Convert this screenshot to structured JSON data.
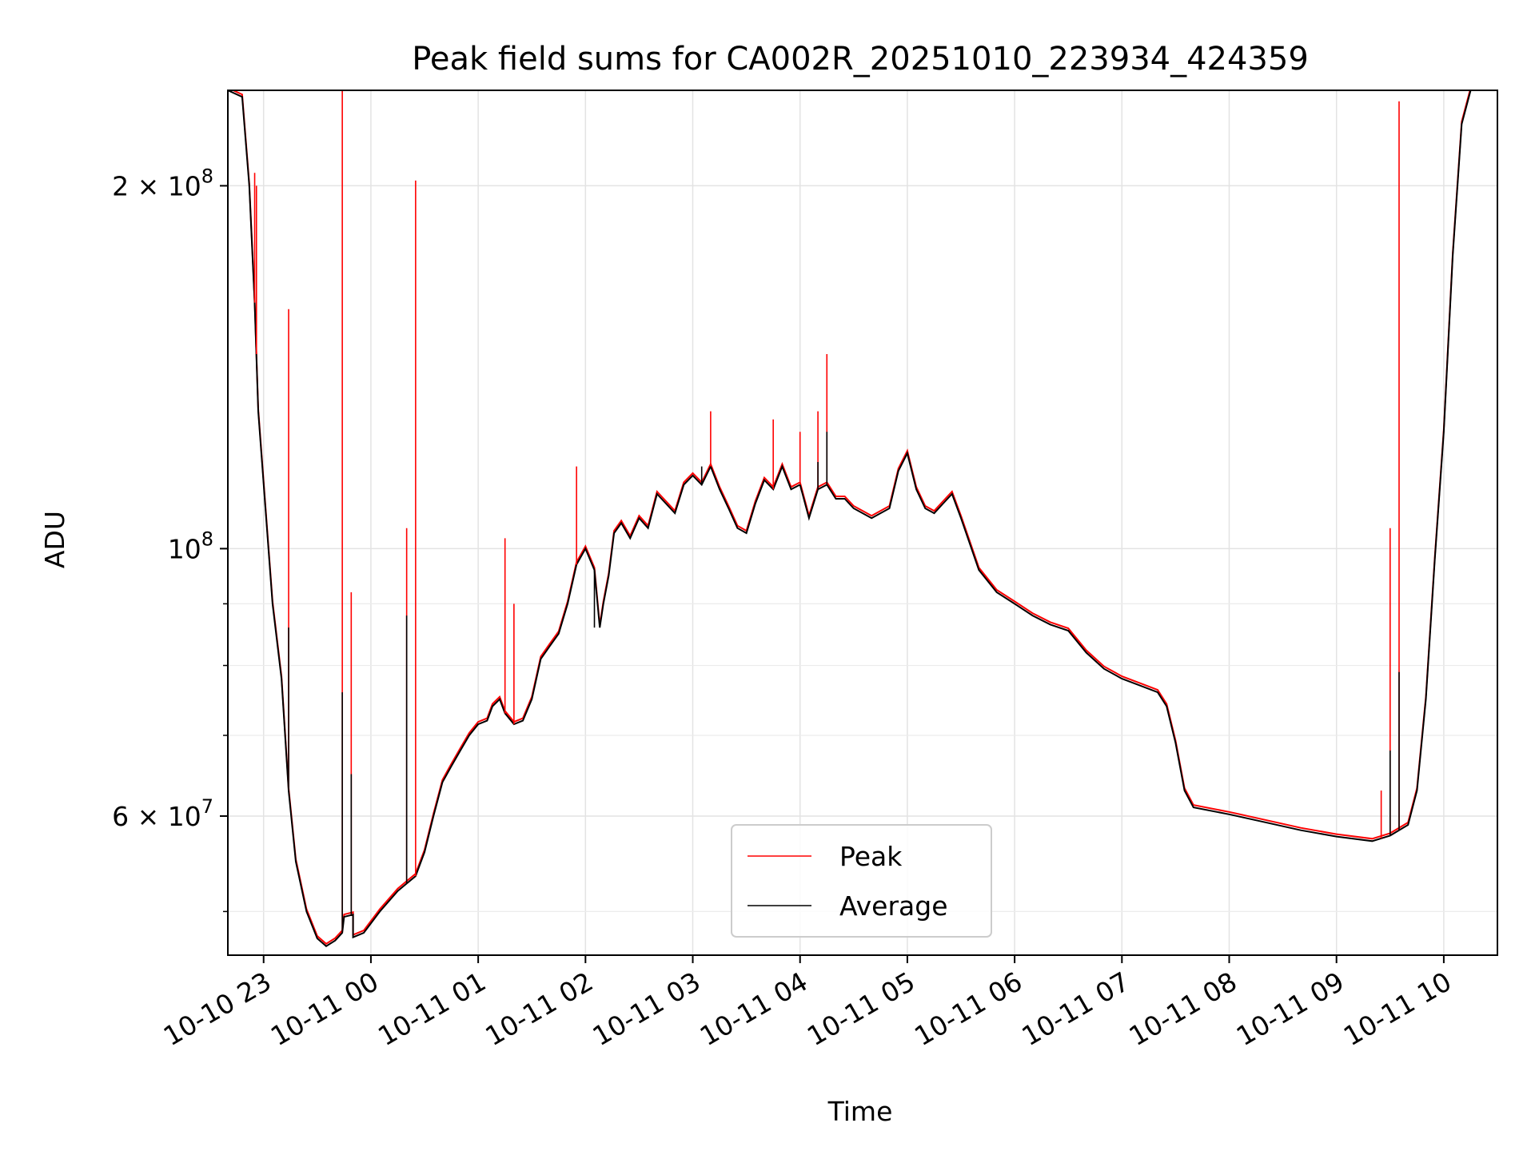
{
  "chart_data": {
    "type": "line",
    "title": "Peak field sums for CA002R_20251010_223934_424359",
    "xlabel": "Time",
    "ylabel": "ADU",
    "y_scale": "log",
    "ylim": [
      46000000,
      240000000
    ],
    "xlim": [
      "2025-10-10 22:40",
      "2025-10-11 10:30"
    ],
    "grid": true,
    "legend_position": "lower-center",
    "x_ticks": [
      {
        "value": "2025-10-10 23:00",
        "label": "10-10 23"
      },
      {
        "value": "2025-10-11 00:00",
        "label": "10-11 00"
      },
      {
        "value": "2025-10-11 01:00",
        "label": "10-11 01"
      },
      {
        "value": "2025-10-11 02:00",
        "label": "10-11 02"
      },
      {
        "value": "2025-10-11 03:00",
        "label": "10-11 03"
      },
      {
        "value": "2025-10-11 04:00",
        "label": "10-11 04"
      },
      {
        "value": "2025-10-11 05:00",
        "label": "10-11 05"
      },
      {
        "value": "2025-10-11 06:00",
        "label": "10-11 06"
      },
      {
        "value": "2025-10-11 07:00",
        "label": "10-11 07"
      },
      {
        "value": "2025-10-11 08:00",
        "label": "10-11 08"
      },
      {
        "value": "2025-10-11 09:00",
        "label": "10-11 09"
      },
      {
        "value": "2025-10-11 10:00",
        "label": "10-11 10"
      }
    ],
    "y_ticks": [
      {
        "value": 60000000,
        "mantissa": "6",
        "exponent": "7"
      },
      {
        "value": 100000000,
        "mantissa": "",
        "exponent": "8"
      },
      {
        "value": 200000000,
        "mantissa": "2",
        "exponent": "8"
      }
    ],
    "y_minor_ticks": [
      50000000,
      70000000,
      80000000,
      90000000
    ],
    "series": [
      {
        "name": "Average",
        "color": "#000000",
        "points": [
          [
            "2025-10-10 22:40",
            240000000
          ],
          [
            "2025-10-10 22:48",
            237000000
          ],
          [
            "2025-10-10 22:52",
            200000000
          ],
          [
            "2025-10-10 22:55",
            160000000
          ],
          [
            "2025-10-10 22:57",
            130000000
          ],
          [
            "2025-10-10 23:05",
            90000000
          ],
          [
            "2025-10-10 23:10",
            78000000
          ],
          [
            "2025-10-10 23:14",
            63000000
          ],
          [
            "2025-10-10 23:18",
            55000000
          ],
          [
            "2025-10-10 23:24",
            50000000
          ],
          [
            "2025-10-10 23:30",
            47500000
          ],
          [
            "2025-10-10 23:35",
            46800000
          ],
          [
            "2025-10-10 23:40",
            47300000
          ],
          [
            "2025-10-10 23:44",
            48000000
          ],
          [
            "2025-10-10 23:45",
            49500000
          ],
          [
            "2025-10-10 23:50",
            49700000
          ],
          [
            "2025-10-10 23:50",
            47600000
          ],
          [
            "2025-10-10 23:56",
            48000000
          ],
          [
            "2025-10-11 00:05",
            50000000
          ],
          [
            "2025-10-11 00:15",
            52000000
          ],
          [
            "2025-10-11 00:25",
            53500000
          ],
          [
            "2025-10-11 00:30",
            56000000
          ],
          [
            "2025-10-11 00:35",
            60000000
          ],
          [
            "2025-10-11 00:40",
            64000000
          ],
          [
            "2025-10-11 00:45",
            66000000
          ],
          [
            "2025-10-11 00:50",
            68000000
          ],
          [
            "2025-10-11 00:55",
            70000000
          ],
          [
            "2025-10-11 01:00",
            71500000
          ],
          [
            "2025-10-11 01:05",
            72000000
          ],
          [
            "2025-10-11 01:08",
            74000000
          ],
          [
            "2025-10-11 01:12",
            75000000
          ],
          [
            "2025-10-11 01:15",
            73000000
          ],
          [
            "2025-10-11 01:20",
            71500000
          ],
          [
            "2025-10-11 01:25",
            72000000
          ],
          [
            "2025-10-11 01:30",
            75000000
          ],
          [
            "2025-10-11 01:35",
            81000000
          ],
          [
            "2025-10-11 01:40",
            83000000
          ],
          [
            "2025-10-11 01:45",
            85000000
          ],
          [
            "2025-10-11 01:50",
            90000000
          ],
          [
            "2025-10-11 01:55",
            97000000
          ],
          [
            "2025-10-11 02:00",
            100000000
          ],
          [
            "2025-10-11 02:05",
            96000000
          ],
          [
            "2025-10-11 02:08",
            86000000
          ],
          [
            "2025-10-11 02:10",
            90000000
          ],
          [
            "2025-10-11 02:13",
            95000000
          ],
          [
            "2025-10-11 02:16",
            103000000
          ],
          [
            "2025-10-11 02:20",
            105000000
          ],
          [
            "2025-10-11 02:25",
            102000000
          ],
          [
            "2025-10-11 02:30",
            106000000
          ],
          [
            "2025-10-11 02:35",
            104000000
          ],
          [
            "2025-10-11 02:40",
            111000000
          ],
          [
            "2025-10-11 02:45",
            109000000
          ],
          [
            "2025-10-11 02:50",
            107000000
          ],
          [
            "2025-10-11 02:55",
            113000000
          ],
          [
            "2025-10-11 03:00",
            115000000
          ],
          [
            "2025-10-11 03:05",
            113000000
          ],
          [
            "2025-10-11 03:10",
            117000000
          ],
          [
            "2025-10-11 03:15",
            112000000
          ],
          [
            "2025-10-11 03:20",
            108000000
          ],
          [
            "2025-10-11 03:25",
            104000000
          ],
          [
            "2025-10-11 03:30",
            103000000
          ],
          [
            "2025-10-11 03:35",
            109000000
          ],
          [
            "2025-10-11 03:40",
            114000000
          ],
          [
            "2025-10-11 03:45",
            112000000
          ],
          [
            "2025-10-11 03:50",
            117000000
          ],
          [
            "2025-10-11 03:55",
            112000000
          ],
          [
            "2025-10-11 04:00",
            113000000
          ],
          [
            "2025-10-11 04:05",
            106000000
          ],
          [
            "2025-10-11 04:10",
            112000000
          ],
          [
            "2025-10-11 04:15",
            113000000
          ],
          [
            "2025-10-11 04:20",
            110000000
          ],
          [
            "2025-10-11 04:25",
            110000000
          ],
          [
            "2025-10-11 04:30",
            108000000
          ],
          [
            "2025-10-11 04:40",
            106000000
          ],
          [
            "2025-10-11 04:50",
            108000000
          ],
          [
            "2025-10-11 04:55",
            116000000
          ],
          [
            "2025-10-11 05:00",
            120000000
          ],
          [
            "2025-10-11 05:05",
            112000000
          ],
          [
            "2025-10-11 05:10",
            108000000
          ],
          [
            "2025-10-11 05:15",
            107000000
          ],
          [
            "2025-10-11 05:20",
            109000000
          ],
          [
            "2025-10-11 05:25",
            111000000
          ],
          [
            "2025-10-11 05:30",
            106000000
          ],
          [
            "2025-10-11 05:40",
            96000000
          ],
          [
            "2025-10-11 05:50",
            92000000
          ],
          [
            "2025-10-11 06:00",
            90000000
          ],
          [
            "2025-10-11 06:10",
            88000000
          ],
          [
            "2025-10-11 06:20",
            86500000
          ],
          [
            "2025-10-11 06:30",
            85500000
          ],
          [
            "2025-10-11 06:40",
            82000000
          ],
          [
            "2025-10-11 06:50",
            79500000
          ],
          [
            "2025-10-11 07:00",
            78000000
          ],
          [
            "2025-10-11 07:10",
            77000000
          ],
          [
            "2025-10-11 07:20",
            76000000
          ],
          [
            "2025-10-11 07:25",
            74000000
          ],
          [
            "2025-10-11 07:30",
            69000000
          ],
          [
            "2025-10-11 07:35",
            63000000
          ],
          [
            "2025-10-11 07:40",
            61000000
          ],
          [
            "2025-10-11 08:00",
            60200000
          ],
          [
            "2025-10-11 08:20",
            59300000
          ],
          [
            "2025-10-11 08:40",
            58400000
          ],
          [
            "2025-10-11 09:00",
            57700000
          ],
          [
            "2025-10-11 09:20",
            57200000
          ],
          [
            "2025-10-11 09:30",
            57800000
          ],
          [
            "2025-10-11 09:40",
            59000000
          ],
          [
            "2025-10-11 09:45",
            63000000
          ],
          [
            "2025-10-11 09:50",
            75000000
          ],
          [
            "2025-10-11 09:55",
            98000000
          ],
          [
            "2025-10-11 10:00",
            125000000
          ],
          [
            "2025-10-11 10:05",
            175000000
          ],
          [
            "2025-10-11 10:10",
            225000000
          ],
          [
            "2025-10-11 10:15",
            240000000
          ],
          [
            "2025-10-11 10:30",
            240000000
          ]
        ],
        "spikes": [
          [
            "2025-10-10 23:14",
            86000000
          ],
          [
            "2025-10-10 23:44",
            76000000
          ],
          [
            "2025-10-10 23:49",
            65000000
          ],
          [
            "2025-10-11 00:20",
            88000000
          ],
          [
            "2025-10-11 02:05",
            86000000
          ],
          [
            "2025-10-11 03:05",
            117000000
          ],
          [
            "2025-10-11 04:10",
            118000000
          ],
          [
            "2025-10-11 04:15",
            125000000
          ],
          [
            "2025-10-11 09:30",
            68000000
          ],
          [
            "2025-10-11 09:35",
            79000000
          ]
        ]
      },
      {
        "name": "Peak",
        "color": "#ff0000",
        "spikes": [
          [
            "2025-10-10 22:55",
            205000000
          ],
          [
            "2025-10-10 22:56",
            200000000
          ],
          [
            "2025-10-10 23:14",
            158000000
          ],
          [
            "2025-10-10 23:44",
            240000000
          ],
          [
            "2025-10-10 23:49",
            92000000
          ],
          [
            "2025-10-11 00:20",
            104000000
          ],
          [
            "2025-10-11 00:25",
            202000000
          ],
          [
            "2025-10-11 01:15",
            102000000
          ],
          [
            "2025-10-11 01:20",
            90000000
          ],
          [
            "2025-10-11 01:55",
            117000000
          ],
          [
            "2025-10-11 03:10",
            130000000
          ],
          [
            "2025-10-11 03:45",
            128000000
          ],
          [
            "2025-10-11 04:00",
            125000000
          ],
          [
            "2025-10-11 04:10",
            130000000
          ],
          [
            "2025-10-11 04:15",
            145000000
          ],
          [
            "2025-10-11 09:25",
            63000000
          ],
          [
            "2025-10-11 09:30",
            104000000
          ],
          [
            "2025-10-11 09:35",
            235000000
          ]
        ]
      }
    ]
  }
}
